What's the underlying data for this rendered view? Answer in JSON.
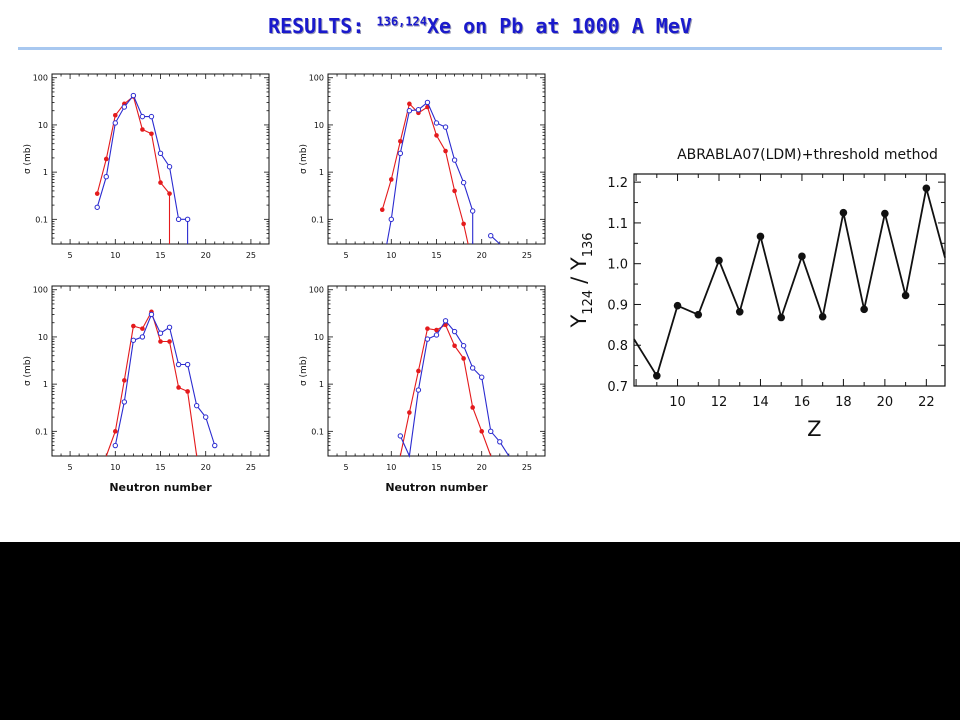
{
  "slide": {
    "title_prefix": "RESULTS: ",
    "title_sup": "136,124",
    "title_suffix": "Xe on Pb at 1000 A MeV"
  },
  "colors": {
    "red_series": "#e41a1c",
    "blue_series": "#2b2bd0",
    "title": "#1a1acc"
  },
  "chart_data": [
    {
      "type": "line",
      "panel": "top-left",
      "ylabel": "σ (mb)",
      "xlabel": "",
      "yscale": "log",
      "xlim": [
        3,
        27
      ],
      "ylim": [
        0.03,
        120
      ],
      "xticks": [
        "5",
        "10",
        "15",
        "20",
        "25"
      ],
      "yticks": [
        "100",
        "10",
        "1",
        "0.1"
      ],
      "series": [
        {
          "color": "red",
          "marker": "filled",
          "x": [
            8,
            9,
            10,
            11,
            12,
            13,
            14,
            15,
            16,
            16
          ],
          "y": [
            0.35,
            1.9,
            16,
            28,
            40,
            8,
            6.5,
            0.6,
            0.35,
            0.03
          ]
        },
        {
          "color": "blue",
          "marker": "open",
          "x": [
            8,
            9,
            10,
            11,
            12,
            13,
            14,
            15,
            16,
            17,
            18,
            18
          ],
          "y": [
            0.18,
            0.8,
            11,
            24,
            42,
            15,
            15,
            2.5,
            1.3,
            0.1,
            0.1,
            0.03
          ]
        }
      ]
    },
    {
      "type": "line",
      "panel": "top-right",
      "ylabel": "σ (mb)",
      "xlabel": "",
      "yscale": "log",
      "xlim": [
        3,
        27
      ],
      "ylim": [
        0.03,
        120
      ],
      "xticks": [
        "5",
        "10",
        "15",
        "20",
        "25"
      ],
      "yticks": [
        "100",
        "10",
        "1",
        "0.1"
      ],
      "series": [
        {
          "color": "red",
          "marker": "filled",
          "x": [
            9,
            10,
            11,
            12,
            13,
            14,
            15,
            16,
            17,
            18,
            18.5
          ],
          "y": [
            0.16,
            0.7,
            4.5,
            28,
            18,
            24,
            6,
            2.8,
            0.4,
            0.08,
            0.03
          ]
        },
        {
          "color": "blue",
          "marker": "open",
          "x": [
            9.5,
            10,
            11,
            12,
            13,
            14,
            15,
            16,
            17,
            18,
            19,
            19
          ],
          "y": [
            0.03,
            0.1,
            2.5,
            20,
            21,
            30,
            11,
            9,
            1.8,
            0.6,
            0.15,
            0.03
          ]
        },
        {
          "color": "blue",
          "marker": "open",
          "x": [
            21,
            22
          ],
          "y": [
            0.045,
            0.03
          ]
        }
      ]
    },
    {
      "type": "line",
      "panel": "bottom-left",
      "ylabel": "σ (mb)",
      "xlabel": "Neutron number",
      "yscale": "log",
      "xlim": [
        3,
        27
      ],
      "ylim": [
        0.03,
        120
      ],
      "xticks": [
        "5",
        "10",
        "15",
        "20",
        "25"
      ],
      "yticks": [
        "100",
        "10",
        "1",
        "0.1"
      ],
      "series": [
        {
          "color": "red",
          "marker": "filled",
          "x": [
            9,
            10,
            11,
            12,
            13,
            14,
            15,
            16,
            17,
            18,
            19
          ],
          "y": [
            0.03,
            0.1,
            1.2,
            17,
            15,
            34,
            8,
            8,
            0.85,
            0.7,
            0.03
          ]
        },
        {
          "color": "blue",
          "marker": "open",
          "x": [
            10,
            11,
            12,
            13,
            14,
            15,
            16,
            17,
            18,
            19,
            20,
            21
          ],
          "y": [
            0.05,
            0.42,
            8.5,
            10,
            30,
            12,
            16,
            2.6,
            2.6,
            0.35,
            0.2,
            0.05
          ]
        }
      ]
    },
    {
      "type": "line",
      "panel": "bottom-right",
      "ylabel": "σ (mb)",
      "xlabel": "Neutron number",
      "yscale": "log",
      "xlim": [
        3,
        27
      ],
      "ylim": [
        0.03,
        120
      ],
      "xticks": [
        "5",
        "10",
        "15",
        "20",
        "25"
      ],
      "yticks": [
        "100",
        "10",
        "1",
        "0.1"
      ],
      "series": [
        {
          "color": "red",
          "marker": "filled",
          "x": [
            11,
            12,
            13,
            14,
            15,
            16,
            17,
            18,
            19,
            20,
            21
          ],
          "y": [
            0.03,
            0.25,
            1.9,
            15,
            14,
            18,
            6.5,
            3.5,
            0.32,
            0.1,
            0.03
          ]
        },
        {
          "color": "blue",
          "marker": "open",
          "x": [
            11,
            12,
            13,
            14,
            15,
            16,
            17,
            18,
            19,
            20,
            21,
            22,
            23
          ],
          "y": [
            0.08,
            0.03,
            0.75,
            9,
            11,
            22,
            13,
            6.5,
            2.2,
            1.4,
            0.1,
            0.06,
            0.03
          ]
        }
      ]
    },
    {
      "type": "line",
      "panel": "right",
      "title": "ABRABLA07(LDM)+threshold method",
      "xlabel": "Z",
      "ylabel_parts": [
        "Y",
        "124",
        "/ Y",
        "136"
      ],
      "xlim": [
        7.9,
        22.9
      ],
      "ylim": [
        0.7,
        1.22
      ],
      "xticks": [
        "10",
        "12",
        "14",
        "16",
        "18",
        "20",
        "22"
      ],
      "yticks": [
        "0.7",
        "0.8",
        "0.9",
        "1.0",
        "1.1",
        "1.2"
      ],
      "series": [
        {
          "color": "black",
          "marker": "filled",
          "x": [
            7.9,
            9,
            10,
            11,
            12,
            13,
            14,
            15,
            16,
            17,
            18,
            19,
            20,
            21,
            22,
            22.9
          ],
          "y": [
            0.815,
            0.725,
            0.897,
            0.875,
            1.008,
            0.882,
            1.067,
            0.868,
            1.018,
            0.87,
            1.125,
            0.888,
            1.123,
            0.922,
            1.185,
            1.015
          ],
          "markers_from": 1,
          "markers_to": 14
        }
      ]
    }
  ]
}
